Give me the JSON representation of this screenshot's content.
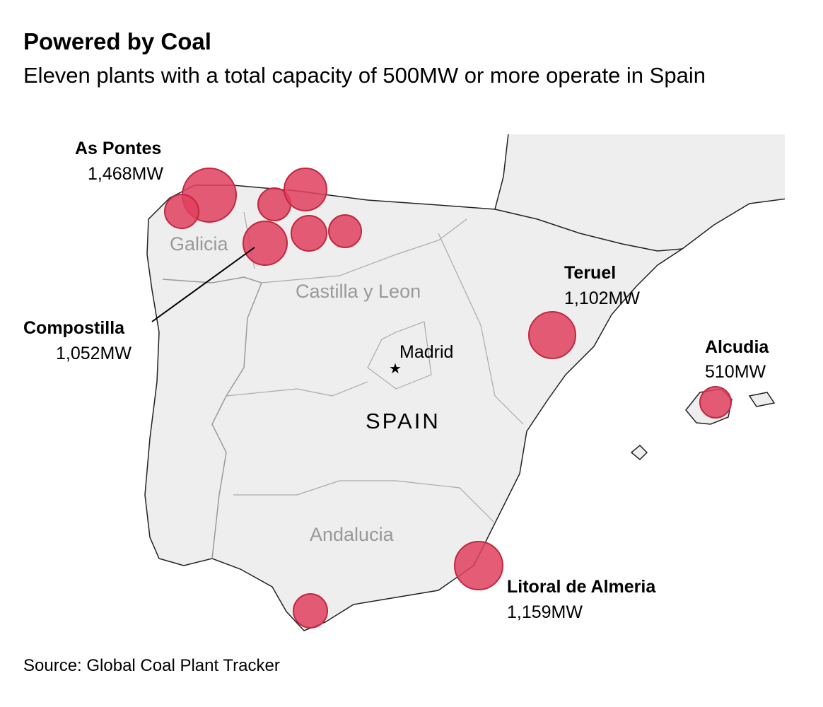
{
  "title": "Powered by Coal",
  "subtitle": "Eleven plants with a total capacity of 500MW or more operate in Spain",
  "source": "Source: Global Coal Plant Tracker",
  "colors": {
    "bubble": "#e0405e",
    "land": "#eeeeee",
    "border": "#aaaaaa",
    "coast": "#222222"
  },
  "regions": {
    "galicia": "Galicia",
    "castilla": "Castilla y Leon",
    "andalucia": "Andalucia"
  },
  "country": "SPAIN",
  "capital": {
    "name": "Madrid",
    "icon": "star-icon"
  },
  "plants": [
    {
      "name": "As Pontes",
      "capacity": "1,468MW",
      "mw": 1468
    },
    {
      "name": "Compostilla",
      "capacity": "1,052MW",
      "mw": 1052
    },
    {
      "name": "Teruel",
      "capacity": "1,102MW",
      "mw": 1102
    },
    {
      "name": "Alcudia",
      "capacity": "510MW",
      "mw": 510
    },
    {
      "name": "Litoral de Almeria",
      "capacity": "1,159MW",
      "mw": 1159
    }
  ]
}
